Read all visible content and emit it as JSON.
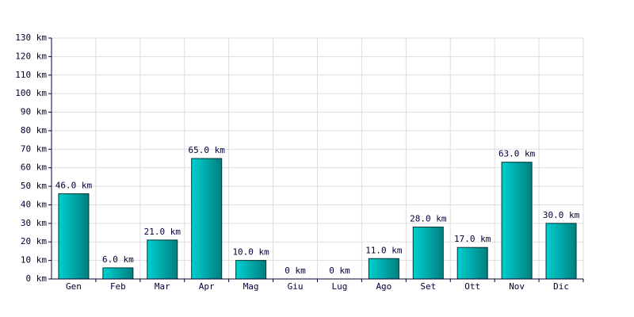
{
  "chart_data": {
    "type": "bar",
    "categories": [
      "Gen",
      "Feb",
      "Mar",
      "Apr",
      "Mag",
      "Giu",
      "Lug",
      "Ago",
      "Set",
      "Ott",
      "Nov",
      "Dic"
    ],
    "values": [
      46,
      6,
      21,
      65,
      10,
      0,
      0,
      11,
      28,
      17,
      63,
      30
    ],
    "value_labels": [
      "46.0 km",
      "6.0 km",
      "21.0 km",
      "65.0 km",
      "10.0 km",
      "0 km",
      "0 km",
      "11.0 km",
      "28.0 km",
      "17.0 km",
      "63.0 km",
      "30.0 km"
    ],
    "color": "#00d0d0",
    "ylim": [
      0,
      130
    ],
    "yticks": [
      {
        "value": 0,
        "label": "0 km"
      },
      {
        "value": 10,
        "label": "10 km"
      },
      {
        "value": 20,
        "label": "20 km"
      },
      {
        "value": 30,
        "label": "30 km"
      },
      {
        "value": 40,
        "label": "40 km"
      },
      {
        "value": 50,
        "label": "50 km"
      },
      {
        "value": 60,
        "label": "60 km"
      },
      {
        "value": 70,
        "label": "70 km"
      },
      {
        "value": 80,
        "label": "80 km"
      },
      {
        "value": 90,
        "label": "90 km"
      },
      {
        "value": 100,
        "label": "100 km"
      },
      {
        "value": 110,
        "label": "110 km"
      },
      {
        "value": 120,
        "label": "120 km"
      },
      {
        "value": 130,
        "label": "130 km"
      }
    ],
    "grid": true
  }
}
